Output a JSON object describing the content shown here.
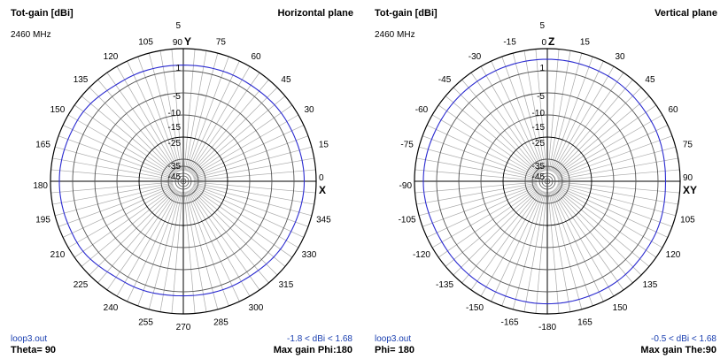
{
  "colors": {
    "trace": "#2a2ad0",
    "grid_light": "#aaaaaa",
    "grid_dark": "#000000",
    "footer_text": "#1a3fb0"
  },
  "chart_data": [
    {
      "type": "polar",
      "quantity_label": "Tot-gain [dBi]",
      "plane_title": "Horizontal plane",
      "frequency": "2460 MHz",
      "file": "loop3.out",
      "cut_label": "Theta= 90",
      "range_label": "-1.8 < dBi < 1.68",
      "max_gain_label": "Max gain Phi:180",
      "axis_label_top": "Y",
      "axis_label_right": "X",
      "angle_labels": [
        "90",
        "75",
        "60",
        "45",
        "30",
        "15",
        "0",
        "345",
        "330",
        "315",
        "300",
        "285",
        "270",
        "255",
        "240",
        "225",
        "210",
        "195",
        "180",
        "165",
        "150",
        "135",
        "120",
        "105"
      ],
      "radial_scale_dbi": [
        "5",
        "1",
        "-5",
        "-10",
        "-15",
        "-25",
        "-35",
        "-45"
      ],
      "radial_range": [
        -45,
        5
      ],
      "trace": {
        "angles_deg": [
          0,
          30,
          60,
          90,
          120,
          150,
          180,
          210,
          240,
          270,
          300,
          330
        ],
        "gain_dbi": [
          0.5,
          0.0,
          -0.8,
          -1.2,
          -0.8,
          1.0,
          1.68,
          1.2,
          -1.0,
          -1.8,
          -1.4,
          -0.3
        ]
      }
    },
    {
      "type": "polar",
      "quantity_label": "Tot-gain [dBi]",
      "plane_title": "Vertical plane",
      "frequency": "2460 MHz",
      "file": "loop3.out",
      "cut_label": "Phi= 180",
      "range_label": "-0.5 < dBi < 1.68",
      "max_gain_label": "Max gain The:90",
      "axis_label_top": "Z",
      "axis_label_right": "XY",
      "angle_labels": [
        "0",
        "15",
        "30",
        "45",
        "60",
        "75",
        "90",
        "105",
        "120",
        "135",
        "150",
        "165",
        "-180",
        "-165",
        "-150",
        "-135",
        "-120",
        "-105",
        "-90",
        "-75",
        "-60",
        "-45",
        "-30",
        "-15"
      ],
      "radial_scale_dbi": [
        "5",
        "1",
        "-5",
        "-10",
        "-15",
        "-25",
        "-35",
        "-45"
      ],
      "radial_range": [
        -45,
        5
      ],
      "trace": {
        "angles_deg": [
          0,
          30,
          60,
          90,
          120,
          150,
          180,
          210,
          240,
          270,
          300,
          330
        ],
        "gain_dbi": [
          1.0,
          0.8,
          0.2,
          -0.5,
          0.3,
          1.0,
          1.2,
          1.0,
          0.8,
          1.68,
          1.2,
          1.0
        ]
      }
    }
  ]
}
